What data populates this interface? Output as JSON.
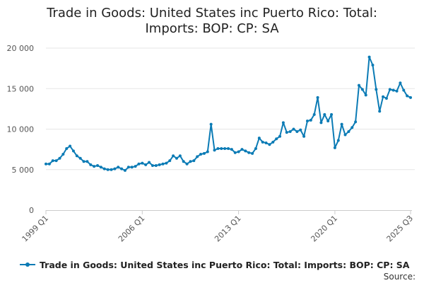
{
  "title_lines": [
    "Trade in Goods: United States inc Puerto Rico: Total:",
    "Imports: BOP: CP: SA"
  ],
  "source_label": "Source:",
  "chart_data": {
    "type": "line",
    "title": "Trade in Goods: United States inc Puerto Rico: Total: Imports: BOP: CP: SA",
    "y_ticks": [
      0,
      5000,
      10000,
      15000,
      20000
    ],
    "y_tick_labels": [
      "0",
      "5 000",
      "10 000",
      "15 000",
      "20 000"
    ],
    "ylim": [
      0,
      20000
    ],
    "x_tick_labels": [
      "1999 Q1",
      "2006 Q1",
      "2013 Q1",
      "2020 Q1",
      "2025 Q3"
    ],
    "x_tick_index": [
      0,
      28,
      56,
      84,
      106
    ],
    "grid": "horizontal",
    "color": "#0b7bb5",
    "series": [
      {
        "name": "Trade in Goods: United States inc Puerto Rico: Total: Imports: BOP: CP: SA",
        "x": [
          "1999 Q1",
          "1999 Q2",
          "1999 Q3",
          "1999 Q4",
          "2000 Q1",
          "2000 Q2",
          "2000 Q3",
          "2000 Q4",
          "2001 Q1",
          "2001 Q2",
          "2001 Q3",
          "2001 Q4",
          "2002 Q1",
          "2002 Q2",
          "2002 Q3",
          "2002 Q4",
          "2003 Q1",
          "2003 Q2",
          "2003 Q3",
          "2003 Q4",
          "2004 Q1",
          "2004 Q2",
          "2004 Q3",
          "2004 Q4",
          "2005 Q1",
          "2005 Q2",
          "2005 Q3",
          "2005 Q4",
          "2006 Q1",
          "2006 Q2",
          "2006 Q3",
          "2006 Q4",
          "2007 Q1",
          "2007 Q2",
          "2007 Q3",
          "2007 Q4",
          "2008 Q1",
          "2008 Q2",
          "2008 Q3",
          "2008 Q4",
          "2009 Q1",
          "2009 Q2",
          "2009 Q3",
          "2009 Q4",
          "2010 Q1",
          "2010 Q2",
          "2010 Q3",
          "2010 Q4",
          "2011 Q1",
          "2011 Q2",
          "2011 Q3",
          "2011 Q4",
          "2012 Q1",
          "2012 Q2",
          "2012 Q3",
          "2012 Q4",
          "2013 Q1",
          "2013 Q2",
          "2013 Q3",
          "2013 Q4",
          "2014 Q1",
          "2014 Q2",
          "2014 Q3",
          "2014 Q4",
          "2015 Q1",
          "2015 Q2",
          "2015 Q3",
          "2015 Q4",
          "2016 Q1",
          "2016 Q2",
          "2016 Q3",
          "2016 Q4",
          "2017 Q1",
          "2017 Q2",
          "2017 Q3",
          "2017 Q4",
          "2018 Q1",
          "2018 Q2",
          "2018 Q3",
          "2018 Q4",
          "2019 Q1",
          "2019 Q2",
          "2019 Q3",
          "2019 Q4",
          "2020 Q1",
          "2020 Q2",
          "2020 Q3",
          "2020 Q4",
          "2021 Q1",
          "2021 Q2",
          "2021 Q3",
          "2021 Q4",
          "2022 Q1",
          "2022 Q2",
          "2022 Q3",
          "2022 Q4",
          "2023 Q1",
          "2023 Q2",
          "2023 Q3",
          "2023 Q4",
          "2024 Q1",
          "2024 Q2",
          "2024 Q3",
          "2024 Q4",
          "2025 Q1",
          "2025 Q2",
          "2025 Q3"
        ],
        "values": [
          5700,
          5700,
          6100,
          6100,
          6400,
          6900,
          7600,
          7900,
          7300,
          6700,
          6400,
          6000,
          6000,
          5600,
          5400,
          5500,
          5300,
          5100,
          5000,
          5000,
          5100,
          5300,
          5100,
          4900,
          5300,
          5300,
          5400,
          5700,
          5800,
          5600,
          5900,
          5500,
          5500,
          5600,
          5700,
          5800,
          6100,
          6700,
          6400,
          6700,
          6000,
          5700,
          6000,
          6100,
          6600,
          6900,
          7000,
          7200,
          10600,
          7400,
          7600,
          7600,
          7600,
          7600,
          7500,
          7100,
          7200,
          7500,
          7300,
          7100,
          7000,
          7600,
          8900,
          8400,
          8300,
          8100,
          8400,
          8800,
          9100,
          10800,
          9600,
          9700,
          10000,
          9700,
          9900,
          9100,
          11000,
          11100,
          11800,
          13900,
          10800,
          11800,
          11000,
          11800,
          7700,
          8600,
          10600,
          9300,
          9700,
          10200,
          10900,
          15400,
          14900,
          14200,
          18900,
          17900,
          14900,
          12200,
          14000,
          13800,
          14900,
          14800,
          14700,
          15700,
          14800,
          14100,
          13900
        ]
      }
    ]
  }
}
